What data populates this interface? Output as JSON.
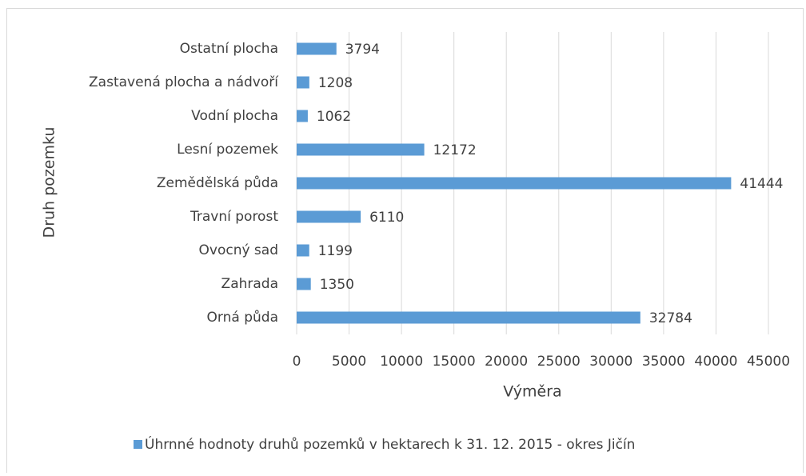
{
  "chart_data": {
    "type": "bar",
    "orientation": "horizontal",
    "categories": [
      "Orná půda",
      "Zahrada",
      "Ovocný sad",
      "Travní porost",
      "Zemědělská půda",
      "Lesní pozemek",
      "Vodní plocha",
      "Zastavená plocha a nádvoří",
      "Ostatní plocha"
    ],
    "series": [
      {
        "name": "Úhrnné hodnoty druhů pozemků v hektarech k 31. 12. 2015 - okres Jičín",
        "color": "#5b9bd5",
        "values": [
          32784,
          1350,
          1199,
          6110,
          41444,
          12172,
          1062,
          1208,
          3794
        ]
      }
    ],
    "xlim": [
      0,
      45000
    ],
    "xticks": [
      0,
      5000,
      10000,
      15000,
      20000,
      25000,
      30000,
      35000,
      40000,
      45000
    ],
    "x_label": "Výměra",
    "y_label": "Druh pozemku",
    "grid": true,
    "legend": "bottom",
    "data_labels": true
  }
}
